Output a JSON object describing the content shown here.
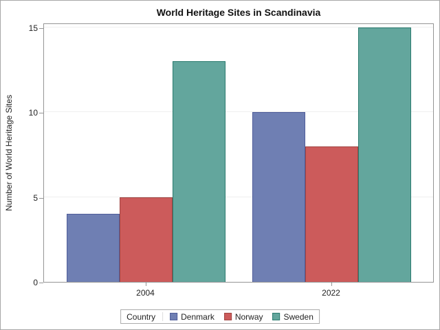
{
  "chart_data": {
    "type": "bar",
    "title": "World Heritage Sites in Scandinavia",
    "ylabel": "Number of World Heritage Sites",
    "xlabel": "",
    "categories": [
      "2004",
      "2022"
    ],
    "series": [
      {
        "name": "Denmark",
        "values": [
          4,
          10
        ],
        "fill": "#6F7FB3",
        "stroke": "#4F5D99"
      },
      {
        "name": "Norway",
        "values": [
          5,
          8
        ],
        "fill": "#CC5B5B",
        "stroke": "#A04441"
      },
      {
        "name": "Sweden",
        "values": [
          13,
          15
        ],
        "fill": "#63A69D",
        "stroke": "#2A7A6E"
      }
    ],
    "yticks": [
      0,
      5,
      10,
      15
    ],
    "ylim": [
      0,
      15.3
    ],
    "grid": true,
    "legend_title": "Country",
    "legend_position": "bottom",
    "axis_color": "#949494",
    "grid_color": "#EFEFEF"
  }
}
